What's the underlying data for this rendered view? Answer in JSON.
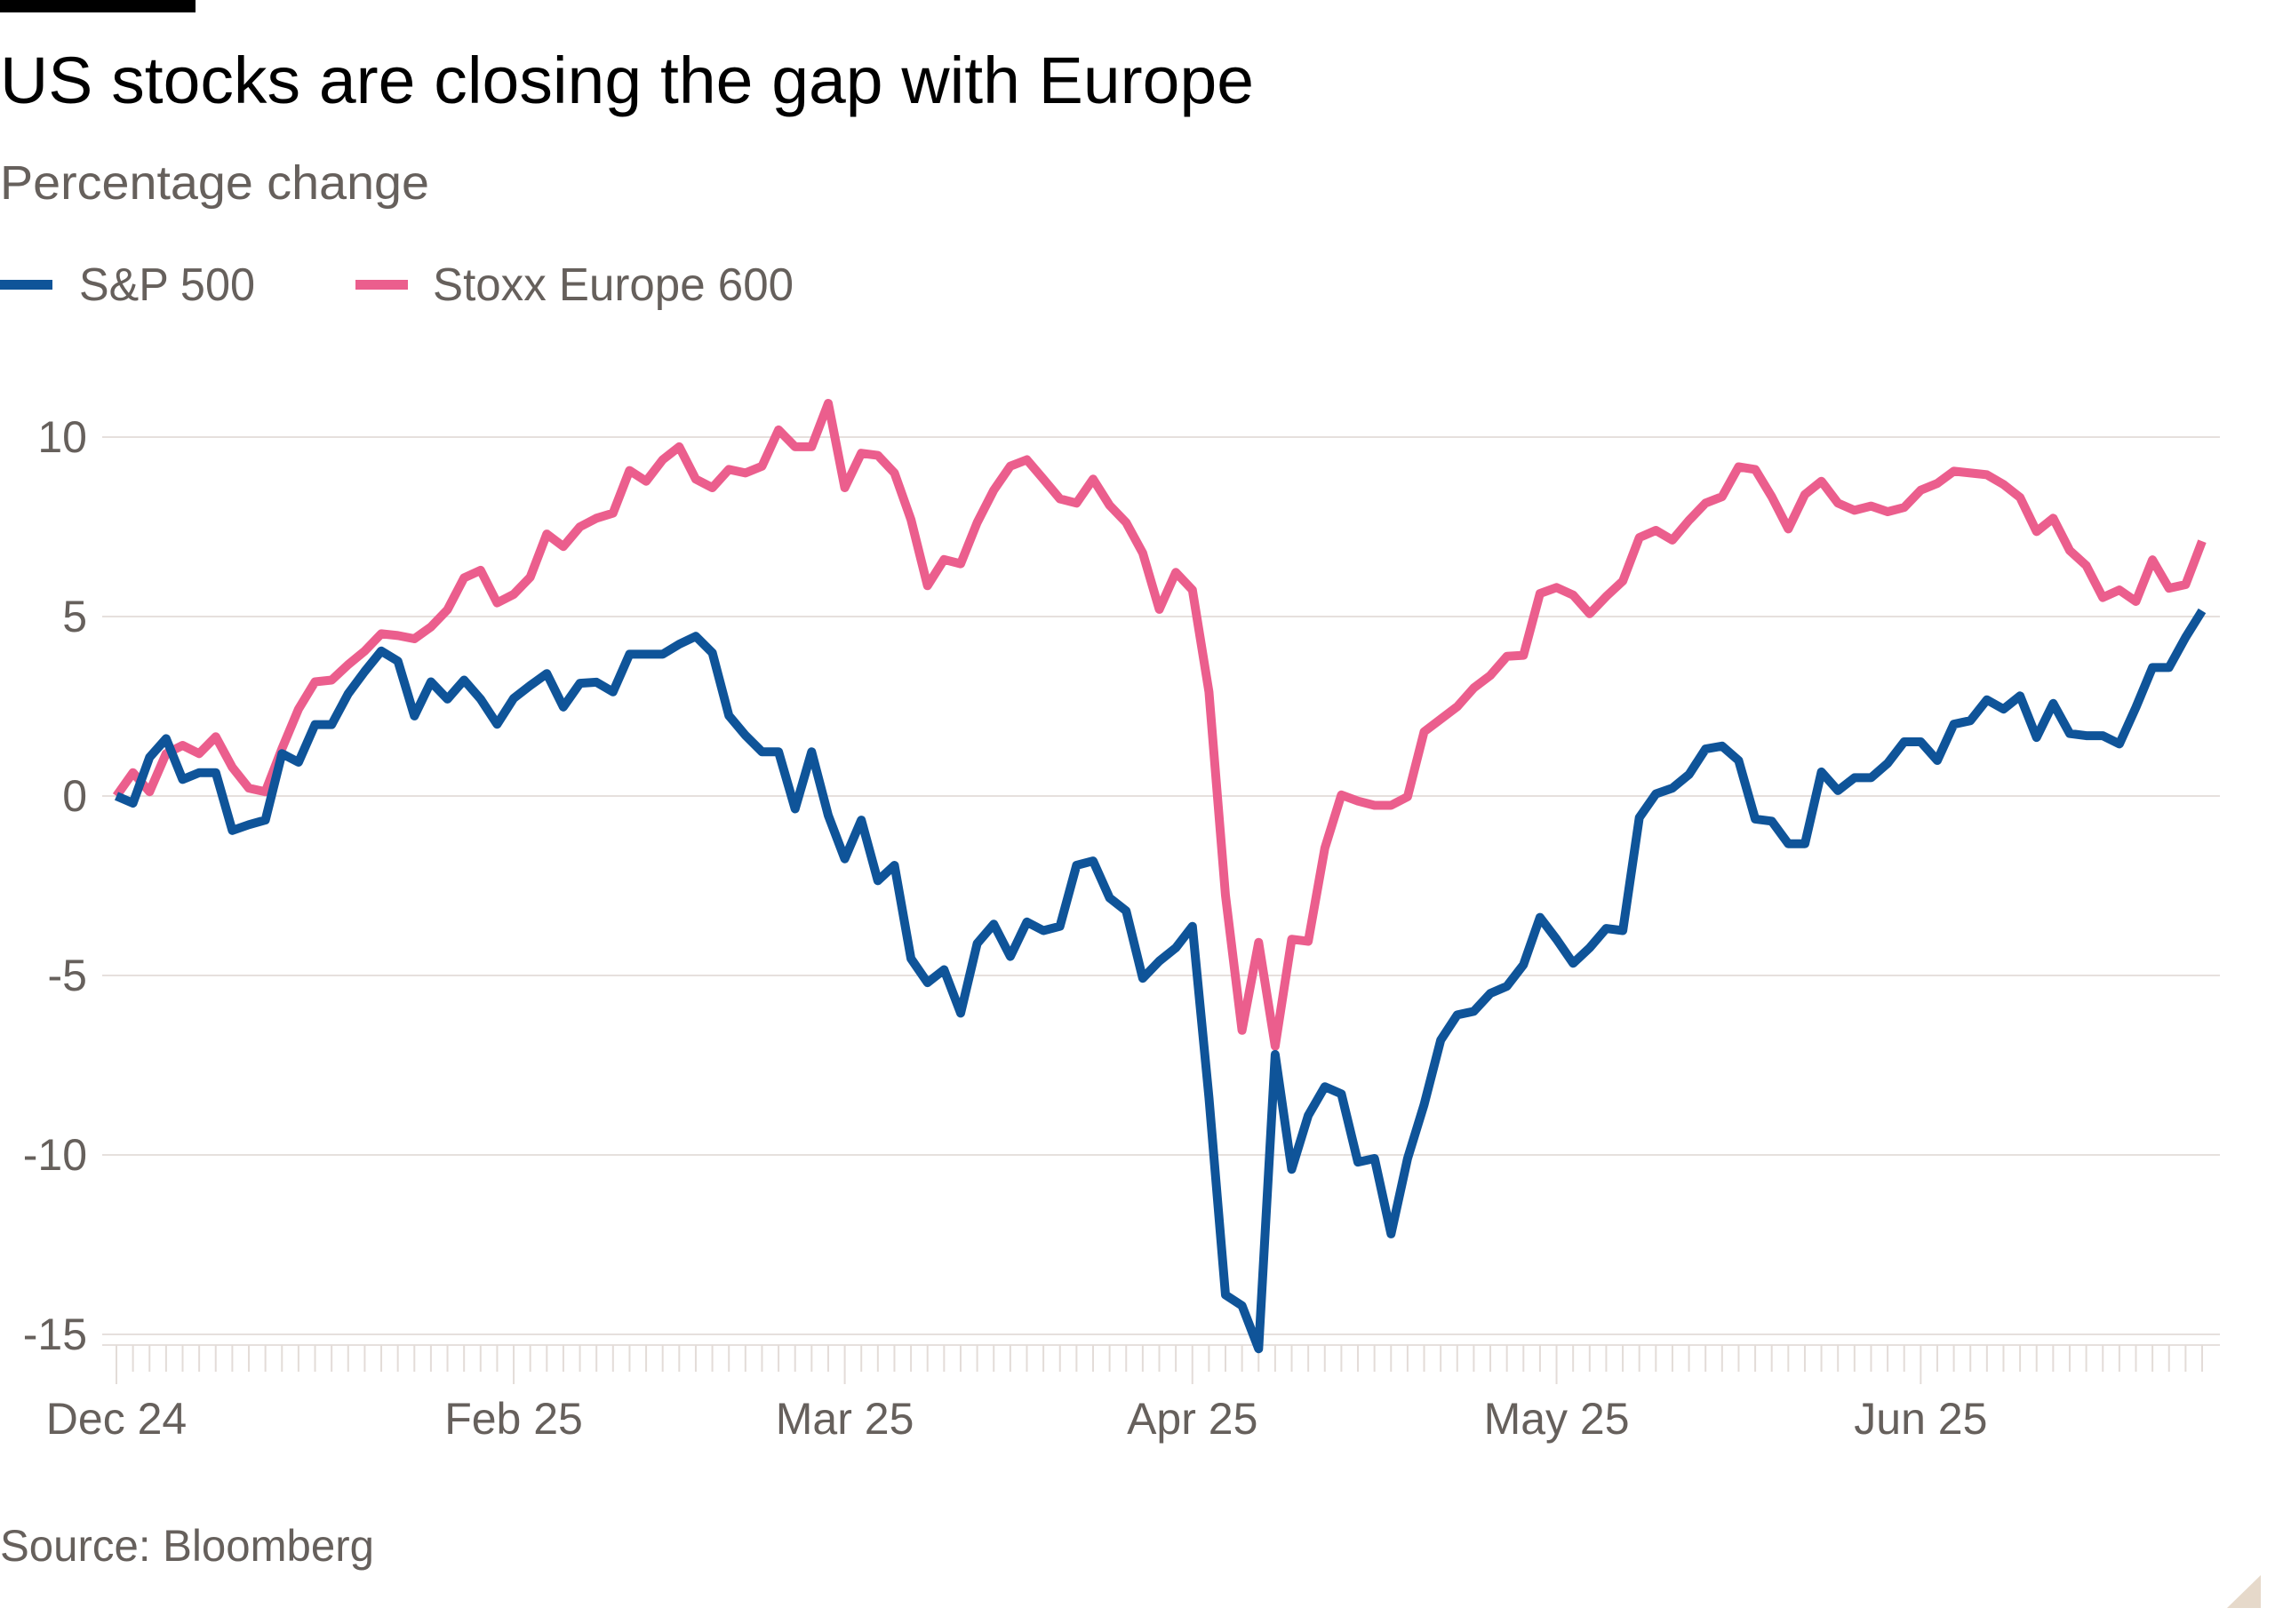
{
  "title": "US stocks are closing the gap with Europe",
  "subtitle": "Percentage change",
  "source": "Source: Bloomberg",
  "colors": {
    "sp500": "#0f5499",
    "stoxx": "#eb5e8d",
    "grid": "#e6e0dd",
    "text": "#66605c",
    "corner": "#e6d9ca"
  },
  "legend": [
    {
      "label": "S&P 500",
      "color": "#0f5499"
    },
    {
      "label": "Stoxx Europe 600",
      "color": "#eb5e8d"
    }
  ],
  "chart_data": {
    "type": "line",
    "title": "US stocks are closing the gap with Europe",
    "subtitle": "Percentage change",
    "ylim": [
      -15,
      11
    ],
    "yticks": [
      10,
      5,
      0,
      -5,
      -10,
      -15
    ],
    "ytick_labels": [
      "10",
      "5",
      "0",
      "-5",
      "-10",
      "-15"
    ],
    "xticks": [
      {
        "date": "2024-12-31",
        "label": "Dec 24"
      },
      {
        "date": "2025-02-03",
        "label": "Feb 25"
      },
      {
        "date": "2025-03-03",
        "label": "Mar 25"
      },
      {
        "date": "2025-04-01",
        "label": "Apr 25"
      },
      {
        "date": "2025-05-01",
        "label": "May 25"
      },
      {
        "date": "2025-06-02",
        "label": "Jun 25"
      }
    ],
    "grid": true,
    "legend_position": "top-left",
    "x": [
      "2024-12-31",
      "2025-01-01",
      "2025-01-02",
      "2025-01-03",
      "2025-01-06",
      "2025-01-07",
      "2025-01-08",
      "2025-01-09",
      "2025-01-10",
      "2025-01-13",
      "2025-01-14",
      "2025-01-15",
      "2025-01-16",
      "2025-01-17",
      "2025-01-20",
      "2025-01-21",
      "2025-01-22",
      "2025-01-23",
      "2025-01-24",
      "2025-01-27",
      "2025-01-28",
      "2025-01-29",
      "2025-01-30",
      "2025-01-31",
      "2025-02-03",
      "2025-02-04",
      "2025-02-05",
      "2025-02-06",
      "2025-02-07",
      "2025-02-10",
      "2025-02-11",
      "2025-02-12",
      "2025-02-13",
      "2025-02-14",
      "2025-02-17",
      "2025-02-18",
      "2025-02-19",
      "2025-02-20",
      "2025-02-21",
      "2025-02-24",
      "2025-02-25",
      "2025-02-26",
      "2025-02-27",
      "2025-02-28",
      "2025-03-03",
      "2025-03-04",
      "2025-03-05",
      "2025-03-06",
      "2025-03-07",
      "2025-03-10",
      "2025-03-11",
      "2025-03-12",
      "2025-03-13",
      "2025-03-14",
      "2025-03-17",
      "2025-03-18",
      "2025-03-19",
      "2025-03-20",
      "2025-03-21",
      "2025-03-24",
      "2025-03-25",
      "2025-03-26",
      "2025-03-27",
      "2025-03-28",
      "2025-03-31",
      "2025-04-01",
      "2025-04-02",
      "2025-04-03",
      "2025-04-04",
      "2025-04-07",
      "2025-04-08",
      "2025-04-09",
      "2025-04-10",
      "2025-04-11",
      "2025-04-14",
      "2025-04-15",
      "2025-04-16",
      "2025-04-17",
      "2025-04-18",
      "2025-04-21",
      "2025-04-22",
      "2025-04-23",
      "2025-04-24",
      "2025-04-25",
      "2025-04-28",
      "2025-04-29",
      "2025-04-30",
      "2025-05-01",
      "2025-05-02",
      "2025-05-05",
      "2025-05-06",
      "2025-05-07",
      "2025-05-08",
      "2025-05-09",
      "2025-05-12",
      "2025-05-13",
      "2025-05-14",
      "2025-05-15",
      "2025-05-16",
      "2025-05-19",
      "2025-05-20",
      "2025-05-21",
      "2025-05-22",
      "2025-05-23",
      "2025-05-26",
      "2025-05-27",
      "2025-05-28",
      "2025-05-29",
      "2025-05-30",
      "2025-06-02",
      "2025-06-03",
      "2025-06-04",
      "2025-06-05",
      "2025-06-06",
      "2025-06-09",
      "2025-06-10",
      "2025-06-11",
      "2025-06-12",
      "2025-06-13",
      "2025-06-16",
      "2025-06-17",
      "2025-06-18",
      "2025-06-19",
      "2025-06-20",
      "2025-06-23",
      "2025-06-24",
      "2025-06-25"
    ],
    "series": [
      {
        "name": "S&P 500",
        "color": "#0f5499",
        "values": [
          0,
          -0.2,
          1.08,
          1.6,
          0.46,
          0.65,
          0.65,
          -0.96,
          -0.8,
          -0.67,
          1.18,
          0.94,
          1.99,
          1.99,
          2.85,
          3.47,
          4.04,
          3.76,
          2.23,
          3.18,
          2.7,
          3.23,
          2.7,
          2.0,
          2.72,
          3.08,
          3.41,
          2.48,
          3.14,
          3.17,
          2.9,
          3.95,
          3.95,
          3.95,
          4.23,
          4.45,
          3.99,
          2.24,
          1.69,
          1.23,
          1.23,
          -0.36,
          1.23,
          -0.54,
          -1.75,
          -0.67,
          -2.36,
          -1.93,
          -4.53,
          -5.2,
          -4.84,
          -6.05,
          -4.11,
          -3.57,
          -4.47,
          -3.51,
          -3.75,
          -3.63,
          -1.93,
          -1.81,
          -2.84,
          -3.2,
          -5.08,
          -4.6,
          -4.23,
          -3.63,
          -8.4,
          -13.9,
          -14.2,
          -15.4,
          -7.2,
          -10.4,
          -8.9,
          -8.1,
          -8.3,
          -10.2,
          -10.1,
          -12.2,
          -10.1,
          -8.6,
          -6.8,
          -6.1,
          -6.0,
          -5.5,
          -5.3,
          -4.7,
          -3.38,
          -3.99,
          -4.66,
          -4.23,
          -3.69,
          -3.75,
          -0.6,
          0.06,
          0.22,
          0.6,
          1.31,
          1.39,
          0.99,
          -0.64,
          -0.7,
          -1.33,
          -1.33,
          0.67,
          0.15,
          0.51,
          0.51,
          0.91,
          1.51,
          1.51,
          0.99,
          2.0,
          2.1,
          2.68,
          2.42,
          2.79,
          1.63,
          2.58,
          1.74,
          1.68,
          1.68,
          1.45,
          2.47,
          3.58,
          3.58,
          4.42,
          5.16
        ]
      },
      {
        "name": "Stoxx Europe 600",
        "color": "#eb5e8d",
        "values": [
          0,
          0.65,
          0.12,
          1.18,
          1.41,
          1.18,
          1.65,
          0.8,
          0.22,
          0.12,
          1.32,
          2.42,
          3.18,
          3.23,
          3.66,
          4.04,
          4.52,
          4.47,
          4.38,
          4.71,
          5.19,
          6.08,
          6.29,
          5.38,
          5.62,
          6.1,
          7.3,
          6.95,
          7.5,
          7.74,
          7.88,
          9.07,
          8.77,
          9.37,
          9.73,
          8.83,
          8.59,
          9.1,
          9.0,
          9.19,
          10.2,
          9.73,
          9.73,
          10.94,
          8.59,
          9.55,
          9.49,
          9.0,
          7.7,
          5.86,
          6.59,
          6.47,
          7.62,
          8.52,
          9.19,
          9.37,
          8.83,
          8.28,
          8.16,
          8.83,
          8.1,
          7.62,
          6.77,
          5.2,
          6.23,
          5.74,
          2.9,
          -2.77,
          -6.53,
          -4.08,
          -6.97,
          -3.99,
          -4.05,
          -1.45,
          0.03,
          -0.14,
          -0.26,
          -0.26,
          -0.02,
          1.79,
          2.14,
          2.49,
          3.01,
          3.36,
          3.89,
          3.92,
          5.64,
          5.81,
          5.6,
          5.08,
          5.56,
          5.99,
          7.2,
          7.4,
          7.13,
          7.68,
          8.16,
          8.34,
          9.17,
          9.1,
          8.34,
          7.44,
          8.4,
          8.77,
          8.16,
          7.96,
          8.08,
          7.92,
          8.04,
          8.52,
          8.71,
          9.05,
          9.0,
          8.95,
          8.68,
          8.32,
          7.37,
          7.74,
          6.84,
          6.42,
          5.53,
          5.74,
          5.42,
          6.58,
          5.79,
          5.89,
          7.1
        ]
      }
    ]
  }
}
